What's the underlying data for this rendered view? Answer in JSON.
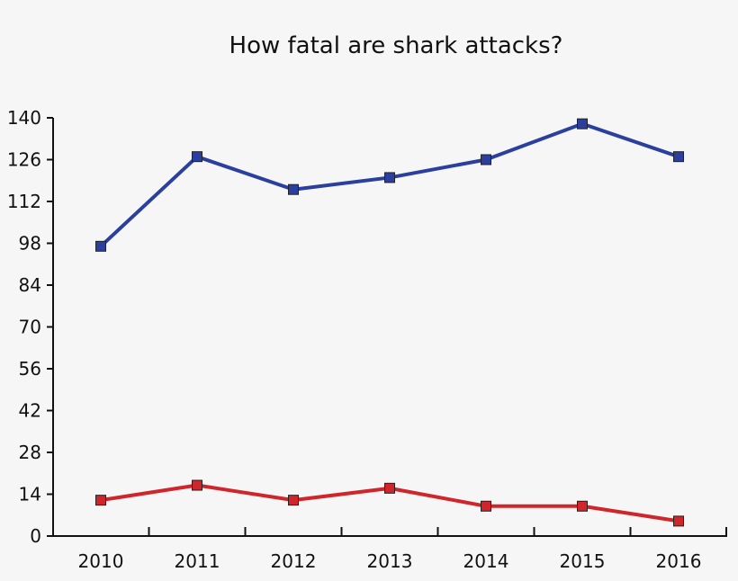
{
  "chart_data": {
    "type": "line",
    "title": "How fatal are shark attacks?",
    "xlabel": "",
    "ylabel": "",
    "categories": [
      "2010",
      "2011",
      "2012",
      "2013",
      "2014",
      "2015",
      "2016"
    ],
    "yticks": [
      0,
      14,
      28,
      42,
      56,
      70,
      84,
      98,
      112,
      126,
      140
    ],
    "ylim": [
      0,
      140
    ],
    "grid": false,
    "legend": "none",
    "series": [
      {
        "values": [
          97,
          127,
          116,
          120,
          126,
          138,
          127
        ],
        "color": "#2b3f9e"
      },
      {
        "values": [
          12,
          17,
          12,
          16,
          10,
          10,
          5
        ],
        "color": "#d0262b"
      }
    ]
  }
}
